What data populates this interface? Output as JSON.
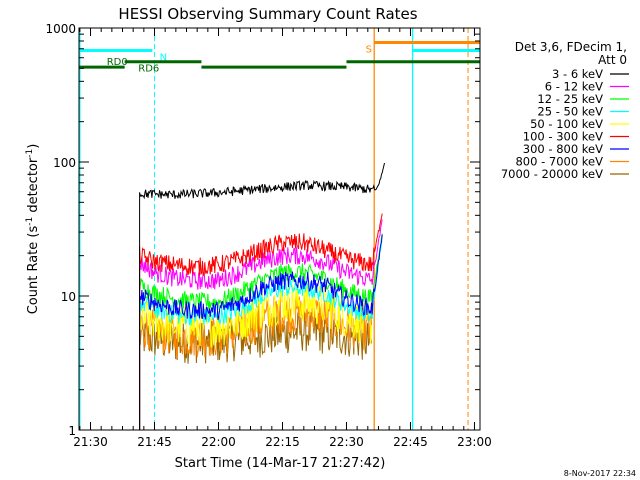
{
  "chart_data": {
    "type": "line",
    "title": "HESSI Observing Summary Count Rates",
    "xlabel": "Start Time (14-Mar-17 21:27:42)",
    "ylabel_main": "Count Rate (s",
    "ylabel_sup1": "-1",
    "ylabel_mid": " detector",
    "ylabel_sup2": "-1",
    "ylabel_end": ")",
    "footer": "8-Nov-2017 22:34",
    "xlim_minutes": [
      -2.7,
      91.3
    ],
    "x_ticks": [
      {
        "m": 0,
        "label": "21:30"
      },
      {
        "m": 15,
        "label": "21:45"
      },
      {
        "m": 30,
        "label": "22:00"
      },
      {
        "m": 45,
        "label": "22:15"
      },
      {
        "m": 60,
        "label": "22:30"
      },
      {
        "m": 75,
        "label": "22:45"
      },
      {
        "m": 90,
        "label": "23:00"
      }
    ],
    "y_scale": "log",
    "ylim": [
      1,
      1000
    ],
    "y_ticks": [
      {
        "v": 1,
        "label": "1"
      },
      {
        "v": 10,
        "label": "10"
      },
      {
        "v": 100,
        "label": "100"
      },
      {
        "v": 1000,
        "label": "1000"
      }
    ],
    "legend": {
      "header1": "Det 3,6, FDecim 1,",
      "header2": "Att 0",
      "entries": [
        {
          "label": "3 - 6 keV",
          "color": "#000000"
        },
        {
          "label": "6 - 12 keV",
          "color": "#ff00ff"
        },
        {
          "label": "12 - 25 keV",
          "color": "#00ff00"
        },
        {
          "label": "25 - 50 keV",
          "color": "#00ffff"
        },
        {
          "label": "50 - 100 keV",
          "color": "#ffff00"
        },
        {
          "label": "100 - 300 keV",
          "color": "#ff0000"
        },
        {
          "label": "300 - 800 keV",
          "color": "#0000ff"
        },
        {
          "label": "800 - 7000 keV",
          "color": "#ff8800"
        },
        {
          "label": "7000 - 20000 keV",
          "color": "#996600"
        }
      ]
    },
    "series": [
      {
        "name": "3 - 6 keV",
        "color": "#000000",
        "x": [
          11.5,
          20,
          30,
          40,
          45,
          50,
          55,
          60,
          66,
          67,
          68,
          69
        ],
        "y": [
          58,
          57,
          59,
          63,
          65,
          67,
          66,
          65,
          62,
          62,
          75,
          100
        ]
      },
      {
        "name": "6 - 12 keV",
        "color": "#ff00ff",
        "x": [
          11.5,
          15,
          20,
          25,
          30,
          35,
          40,
          45,
          50,
          55,
          60,
          66,
          67.5,
          68.5
        ],
        "y": [
          18,
          15,
          13.5,
          13,
          13,
          15,
          18,
          20,
          20,
          18,
          15,
          13,
          25,
          38
        ]
      },
      {
        "name": "12 - 25 keV",
        "color": "#00ff00",
        "x": [
          11.5,
          15,
          20,
          25,
          30,
          35,
          40,
          45,
          50,
          55,
          60,
          66,
          67.5,
          68.5
        ],
        "y": [
          12,
          10.5,
          9.5,
          9,
          9,
          10.5,
          13,
          15,
          15,
          13.5,
          11,
          9.5,
          20,
          30
        ]
      },
      {
        "name": "25 - 50 keV",
        "color": "#00ffff",
        "x": [
          11.5,
          15,
          20,
          25,
          30,
          35,
          40,
          45,
          50,
          55,
          60,
          66,
          67.5,
          68.5
        ],
        "y": [
          9,
          8,
          7.2,
          7,
          7,
          8,
          10,
          11.5,
          11.5,
          10.5,
          8.5,
          7,
          18,
          28
        ]
      },
      {
        "name": "50 - 100 keV",
        "color": "#ffff00",
        "x": [
          11.5,
          15,
          20,
          25,
          30,
          35,
          40,
          45,
          50,
          55,
          60,
          66
        ],
        "y": [
          7,
          6.5,
          6,
          6,
          6,
          6.5,
          8,
          9,
          9,
          8.5,
          7,
          6
        ]
      },
      {
        "name": "100 - 300 keV",
        "color": "#ff0000",
        "x": [
          11.5,
          15,
          20,
          25,
          30,
          35,
          40,
          45,
          50,
          55,
          60,
          66,
          67.5,
          68.5
        ],
        "y": [
          20,
          18,
          17,
          16.5,
          17,
          19,
          22,
          25,
          25,
          22,
          19,
          17,
          30,
          45
        ]
      },
      {
        "name": "300 - 800 keV",
        "color": "#0000ff",
        "x": [
          11.5,
          15,
          20,
          25,
          30,
          35,
          40,
          45,
          50,
          55,
          60,
          66,
          67.5,
          68.5
        ],
        "y": [
          10,
          9,
          8,
          7.8,
          7.8,
          9,
          11.5,
          13,
          13,
          12,
          9.5,
          8,
          18,
          30
        ]
      },
      {
        "name": "800 - 7000 keV",
        "color": "#ff8800",
        "x": [
          11.5,
          15,
          20,
          25,
          30,
          35,
          40,
          45,
          50,
          55,
          60,
          66
        ],
        "y": [
          6,
          5.5,
          5,
          5,
          5,
          5.5,
          6.5,
          7.5,
          7.5,
          7,
          6,
          5.5
        ]
      },
      {
        "name": "7000 - 20000 keV",
        "color": "#996600",
        "x": [
          11.5,
          20,
          30,
          40,
          50,
          60,
          66
        ],
        "y": [
          5,
          4.5,
          4.5,
          5,
          5.5,
          5,
          4.5
        ]
      }
    ],
    "state_bars": [
      {
        "name": "N",
        "color": "#00ffff",
        "y": 680,
        "label_at": 16.2,
        "segments": [
          [
            -2.7,
            14.5
          ],
          [
            75.5,
            91.3
          ]
        ]
      },
      {
        "name": "S",
        "color": "#ff8800",
        "y": 780,
        "label_at": 64.5,
        "segments": [
          [
            66.5,
            91.3
          ]
        ]
      },
      {
        "name": "RD0",
        "color": "#006600",
        "y": 510,
        "label_at": 3.8,
        "segments": [
          [
            -2.7,
            8
          ],
          [
            26,
            60
          ]
        ]
      },
      {
        "name": "RD6",
        "color": "#006600",
        "y": 560,
        "label_at": 11.2,
        "segments": [
          [
            8,
            26
          ],
          [
            60,
            91.3
          ]
        ]
      }
    ],
    "markers": [
      {
        "name": "N",
        "color": "#00ffff",
        "x": [
          -2.5,
          75.5
        ]
      },
      {
        "name": "N-dashed",
        "color": "#00ffff",
        "x": [
          15
        ],
        "dashed": true
      },
      {
        "name": "S",
        "color": "#ff8800",
        "x": [
          66.5
        ]
      },
      {
        "name": "S-dashed",
        "color": "#ff8800",
        "x": [
          88.5
        ],
        "dashed": true
      }
    ]
  }
}
